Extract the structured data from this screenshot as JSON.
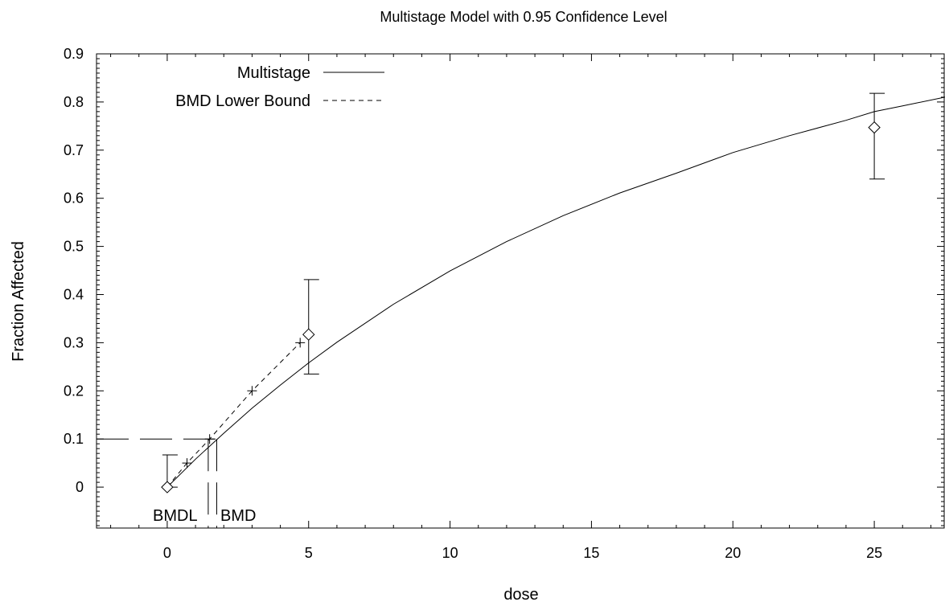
{
  "chart_data": {
    "type": "line",
    "title": "Multistage Model with 0.95 Confidence Level",
    "xlabel": "dose",
    "ylabel": "Fraction Affected",
    "xlim": [
      -2.5,
      27.5
    ],
    "ylim": [
      -0.085,
      0.9
    ],
    "x_ticks": [
      0,
      5,
      10,
      15,
      20,
      25
    ],
    "y_ticks": [
      0,
      0.1,
      0.2,
      0.3,
      0.4,
      0.5,
      0.6,
      0.7,
      0.8,
      0.9
    ],
    "legend_position": "top-left",
    "grid": false,
    "series": [
      {
        "name": "Multistage",
        "style": "solid",
        "x": [
          0,
          1,
          2,
          3,
          4,
          5,
          6,
          8,
          10,
          12,
          14,
          16,
          18,
          20,
          22,
          24,
          25,
          26,
          27.5
        ],
        "y": [
          0.0,
          0.058,
          0.112,
          0.164,
          0.212,
          0.258,
          0.301,
          0.38,
          0.449,
          0.51,
          0.564,
          0.611,
          0.652,
          0.695,
          0.73,
          0.762,
          0.78,
          0.792,
          0.81
        ]
      },
      {
        "name": "BMD Lower Bound",
        "style": "dashed",
        "x": [
          0,
          0.7,
          1.5,
          3.0,
          4.7
        ],
        "y": [
          0.0,
          0.05,
          0.1,
          0.2,
          0.3
        ]
      }
    ],
    "observed": {
      "x": [
        0,
        5,
        25
      ],
      "y": [
        0.0,
        0.317,
        0.747
      ],
      "lower": [
        0.0,
        0.235,
        0.64
      ],
      "upper": [
        0.067,
        0.431,
        0.818
      ]
    },
    "bmr": 0.1,
    "bmd": 1.75,
    "bmdl": 1.45,
    "annotations": {
      "bmdl": "BMDL",
      "bmd": "BMD"
    }
  }
}
